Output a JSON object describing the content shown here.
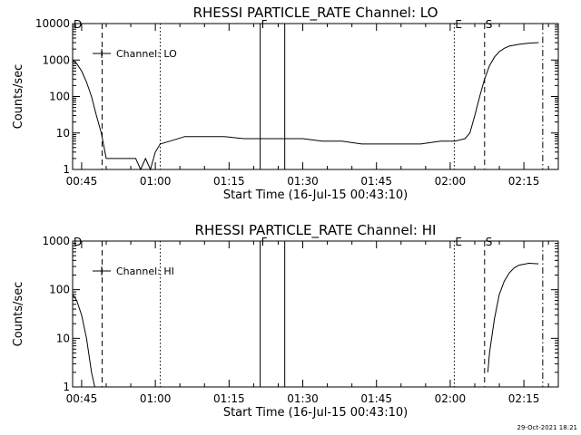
{
  "chart_data": [
    {
      "type": "line",
      "title": "RHESSI PARTICLE_RATE Channel: LO",
      "xlabel": "Start Time (16-Jul-15 00:43:10)",
      "ylabel": "Counts/sec",
      "y_scale": "log",
      "xlim": [
        "00:43:10",
        "02:22:00"
      ],
      "ylim": [
        1,
        10000
      ],
      "x_tick_labels": [
        "00:45",
        "01:00",
        "01:15",
        "01:30",
        "01:45",
        "02:00",
        "02:15"
      ],
      "y_tick_labels": [
        "1",
        "10",
        "100",
        "1000",
        "10000"
      ],
      "legend": {
        "label": "Channel: LO",
        "position": "top-left"
      },
      "series": [
        {
          "name": "Channel: LO",
          "color": "#000000",
          "x": [
            "00:43:10",
            "00:44:00",
            "00:45:00",
            "00:46:00",
            "00:47:00",
            "00:48:00",
            "00:49:00",
            "00:50:00",
            "00:52:00",
            "00:54:00",
            "00:55:00",
            "00:56:00",
            "00:57:00",
            "00:58:00",
            "00:59:00",
            "01:00:00",
            "01:01:00",
            "01:03:00",
            "01:06:00",
            "01:10:00",
            "01:14:00",
            "01:18:00",
            "01:22:00",
            "01:26:00",
            "01:30:00",
            "01:34:00",
            "01:38:00",
            "01:42:00",
            "01:46:00",
            "01:50:00",
            "01:54:00",
            "01:58:00",
            "02:01:00",
            "02:03:00",
            "02:04:00",
            "02:05:00",
            "02:06:00",
            "02:07:00",
            "02:08:00",
            "02:09:00",
            "02:10:00",
            "02:11:00",
            "02:12:00",
            "02:14:00",
            "02:16:00",
            "02:18:00"
          ],
          "y": [
            1000,
            800,
            500,
            250,
            100,
            30,
            10,
            2,
            2,
            2,
            2,
            2,
            1,
            2,
            1,
            3,
            5,
            6,
            8,
            8,
            8,
            7,
            7,
            7,
            7,
            6,
            6,
            5,
            5,
            5,
            5,
            6,
            6,
            7,
            10,
            30,
            100,
            300,
            700,
            1200,
            1700,
            2100,
            2400,
            2700,
            2900,
            3000
          ]
        }
      ],
      "markers": [
        {
          "label": "D",
          "x": "00:43:10",
          "style": "solid"
        },
        {
          "label": "",
          "x": "00:49:10",
          "style": "dashed"
        },
        {
          "label": "",
          "x": "01:01:00",
          "style": "dotted"
        },
        {
          "label": "F",
          "x": "01:21:20",
          "style": "solid"
        },
        {
          "label": "",
          "x": "01:26:20",
          "style": "solid"
        },
        {
          "label": "E",
          "x": "02:00:50",
          "style": "dotted"
        },
        {
          "label": "S",
          "x": "02:07:00",
          "style": "dashed"
        },
        {
          "label": "",
          "x": "02:18:50",
          "style": "dashdot"
        }
      ]
    },
    {
      "type": "line",
      "title": "RHESSI PARTICLE_RATE Channel: HI",
      "xlabel": "Start Time (16-Jul-15 00:43:10)",
      "ylabel": "Counts/sec",
      "y_scale": "log",
      "xlim": [
        "00:43:10",
        "02:22:00"
      ],
      "ylim": [
        1,
        1000
      ],
      "x_tick_labels": [
        "00:45",
        "01:00",
        "01:15",
        "01:30",
        "01:45",
        "02:00",
        "02:15"
      ],
      "y_tick_labels": [
        "1",
        "10",
        "100",
        "1000"
      ],
      "legend": {
        "label": "Channel: HI",
        "position": "top-left"
      },
      "series": [
        {
          "name": "Channel: HI",
          "color": "#000000",
          "x": [
            "00:43:10",
            "00:44:00",
            "00:45:00",
            "00:46:00",
            "00:47:00",
            "00:47:40"
          ],
          "y": [
            80,
            60,
            30,
            10,
            2,
            1
          ]
        },
        {
          "name": "Channel: HI",
          "color": "#000000",
          "x": [
            "02:07:40",
            "02:08:00",
            "02:09:00",
            "02:10:00",
            "02:11:00",
            "02:12:00",
            "02:13:00",
            "02:14:00",
            "02:16:00",
            "02:18:00"
          ],
          "y": [
            2,
            5,
            25,
            80,
            150,
            220,
            280,
            320,
            350,
            340
          ]
        }
      ],
      "markers": [
        {
          "label": "D",
          "x": "00:43:10",
          "style": "solid"
        },
        {
          "label": "",
          "x": "00:49:10",
          "style": "dashed"
        },
        {
          "label": "",
          "x": "01:01:00",
          "style": "dotted"
        },
        {
          "label": "F",
          "x": "01:21:20",
          "style": "solid"
        },
        {
          "label": "",
          "x": "01:26:20",
          "style": "solid"
        },
        {
          "label": "E",
          "x": "02:00:50",
          "style": "dotted"
        },
        {
          "label": "S",
          "x": "02:07:00",
          "style": "dashed"
        },
        {
          "label": "",
          "x": "02:18:50",
          "style": "dashdot"
        }
      ]
    }
  ],
  "footer": {
    "timestamp": "29-Oct-2021 18:21"
  }
}
